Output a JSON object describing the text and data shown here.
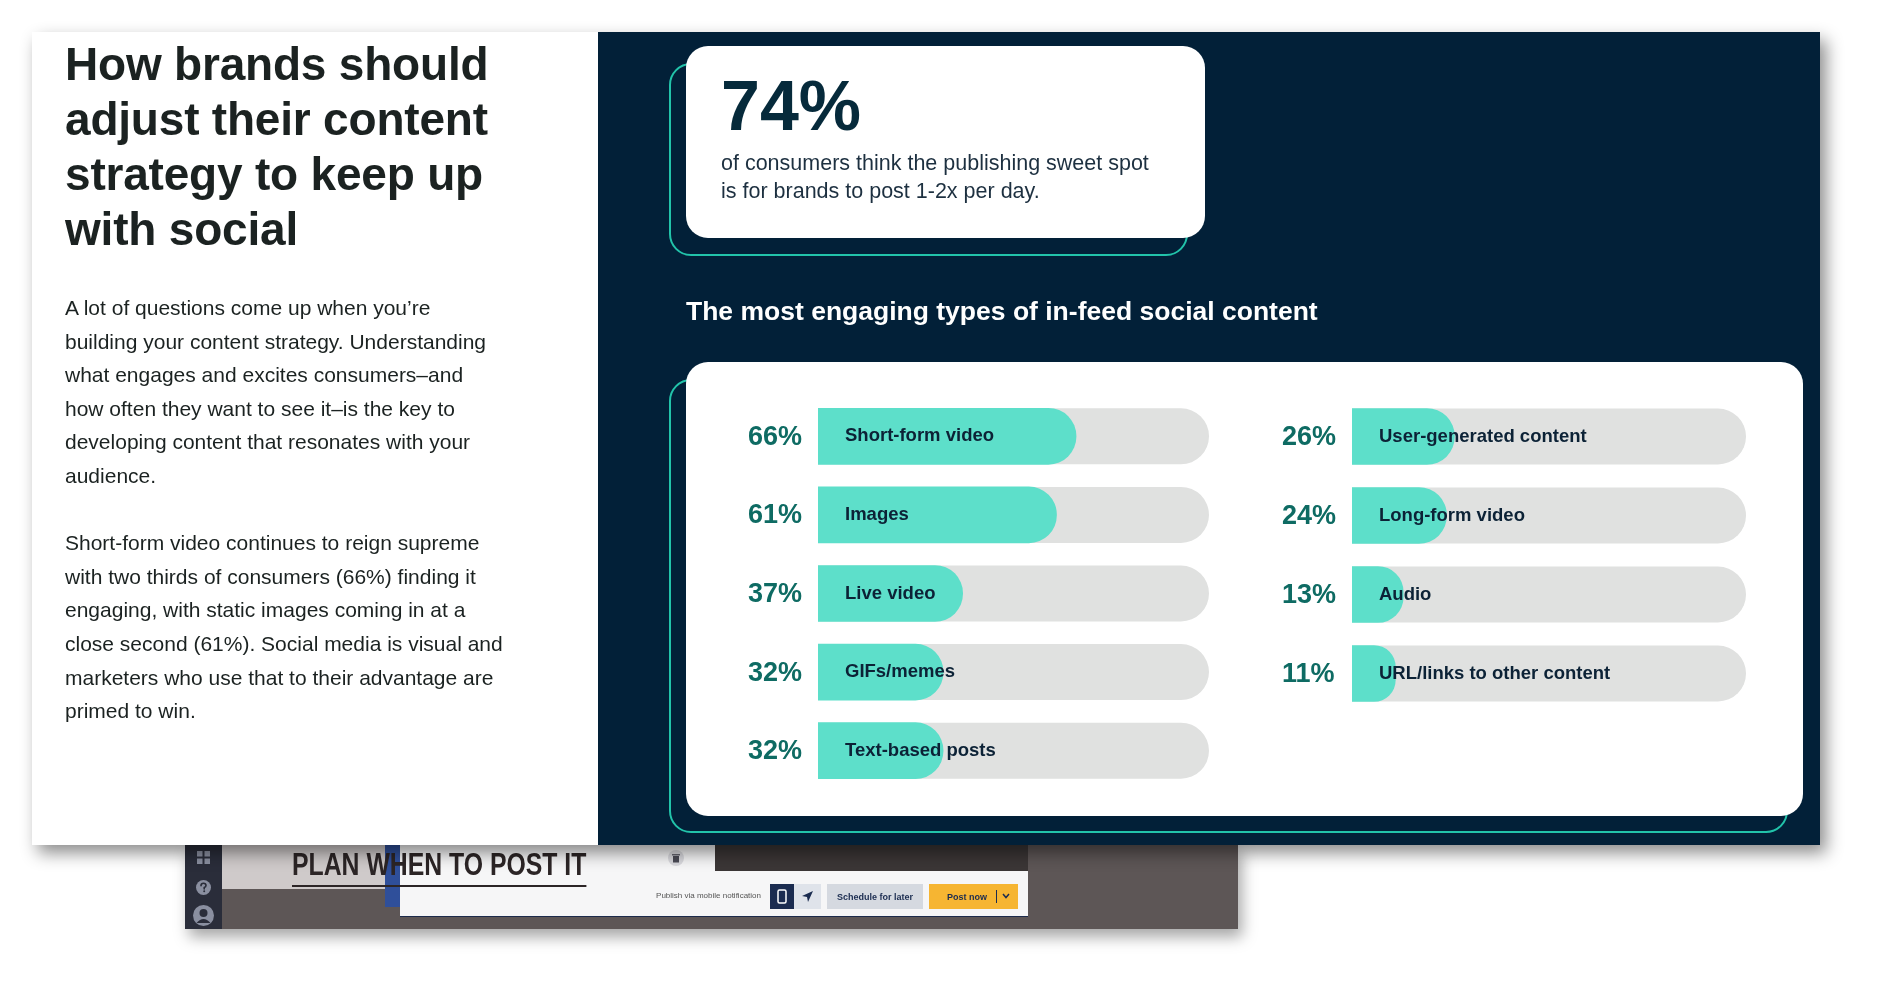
{
  "chart_data": [
    {
      "type": "other",
      "title": "How brands should adjust their content strategy to keep up with social",
      "annotations": [
        "A lot of questions come up when you’re building your content strategy. Understanding what engages and excites consumers–and how often they want to see it–is the key to developing content that resonates with your audience.",
        "Short-form video continues to reign supreme with two thirds of consumers (66%) finding it engaging, with static images coming in at a close second (61%). Social media is visual and marketers who use that to their advantage are primed to win."
      ]
    },
    {
      "type": "other",
      "title": "74%",
      "annotations": [
        "of consumers think the publishing sweet spot is for brands to post 1-2x per day."
      ]
    },
    {
      "type": "bar",
      "orientation": "horizontal",
      "title": "The most engaging types of in-feed social content",
      "categories": [
        "Short-form video",
        "Images",
        "Live video",
        "GIFs/memes",
        "Text-based posts"
      ],
      "values": [
        66,
        61,
        37,
        32,
        32
      ],
      "value_labels": [
        "66%",
        "61%",
        "37%",
        "32%",
        "32%"
      ],
      "color": "#5ddfca",
      "xlim": [
        0,
        100
      ],
      "tick_labels": "y"
    },
    {
      "type": "bar",
      "orientation": "horizontal",
      "categories": [
        "User-generated content",
        "Long-form video",
        "Audio",
        "URL/links to other content"
      ],
      "values": [
        26,
        24,
        13,
        11
      ],
      "value_labels": [
        "26%",
        "24%",
        "13%",
        "11%"
      ],
      "color": "#5ddfca",
      "xlim": [
        0,
        100
      ],
      "tick_labels": "y"
    },
    {
      "type": "other",
      "annotations": [
        "PLAN WHEN TO POST IT",
        "Publish via mobile notification",
        "Schedule for later",
        "Post now"
      ]
    }
  ]
}
